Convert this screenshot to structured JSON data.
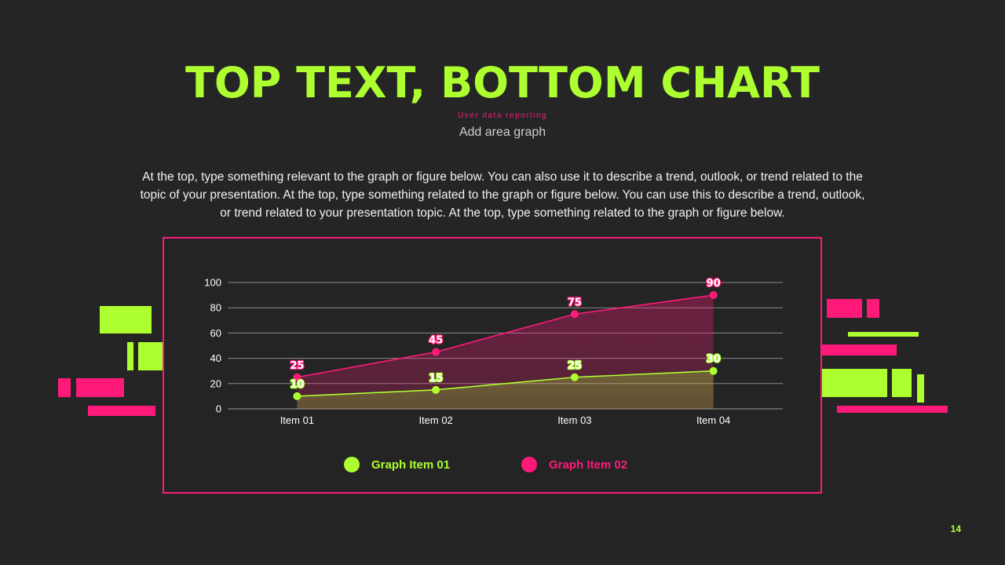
{
  "slide": {
    "title": "TOP TEXT, BOTTOM CHART",
    "kicker": "User data reporting",
    "subtitle": "Add area graph",
    "body": "At the top, type something relevant to the graph or figure below. You can also use it to describe a trend, outlook, or trend related to the topic of your presentation. At the top, type something related to the graph or figure below. You can use this to describe a trend, outlook, or trend related to your presentation topic. At the top, type something related to the graph or figure below.",
    "page_number": "14"
  },
  "colors": {
    "background": "#252525",
    "lime": "#adff2f",
    "pink": "#ff1a7a"
  },
  "chart_data": {
    "type": "area",
    "categories": [
      "Item 01",
      "Item 02",
      "Item 03",
      "Item 04"
    ],
    "series": [
      {
        "name": "Graph Item 01",
        "color": "#adff2f",
        "values": [
          10,
          15,
          25,
          30
        ]
      },
      {
        "name": "Graph Item 02",
        "color": "#ff1a7a",
        "values": [
          25,
          45,
          75,
          90
        ]
      }
    ],
    "yticks": [
      0,
      20,
      40,
      60,
      80,
      100
    ],
    "ylim": [
      0,
      100
    ],
    "grid": true,
    "data_labels": true,
    "legend_position": "bottom"
  }
}
